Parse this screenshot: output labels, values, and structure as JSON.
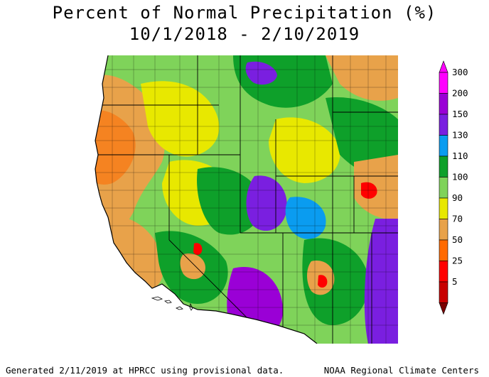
{
  "header": {
    "title": "Percent of Normal Precipitation (%)",
    "period": "10/1/2018 - 2/10/2019"
  },
  "legend": {
    "bins": [
      {
        "label": "300",
        "color": "#ff00ff"
      },
      {
        "label": "200",
        "color": "#9a00d6"
      },
      {
        "label": "150",
        "color": "#7a1fe0"
      },
      {
        "label": "130",
        "color": "#0a9cf0"
      },
      {
        "label": "110",
        "color": "#0ea02a"
      },
      {
        "label": "100",
        "color": "#7fd35a"
      },
      {
        "label": "90",
        "color": "#e8e800"
      },
      {
        "label": "70",
        "color": "#e8a24a"
      },
      {
        "label": "50",
        "color": "#ff6a00"
      },
      {
        "label": "25",
        "color": "#ff0000"
      },
      {
        "label": "5",
        "color": "#c80000"
      }
    ],
    "min_color": "#7a0000"
  },
  "map": {
    "region": "Western United States",
    "palette": {
      "dry_red": "#ff0000",
      "orange": "#ff6a00",
      "tan": "#e8a24a",
      "yellow": "#e8e800",
      "light_green": "#7fd35a",
      "green": "#0ea02a",
      "blue": "#0a9cf0",
      "purple": "#7a1fe0",
      "violet": "#9a00d6",
      "ocean": "#ffffff",
      "borders": "#000000"
    }
  },
  "footer": {
    "left": "Generated 2/11/2019 at HPRCC using provisional data.",
    "right": "NOAA Regional Climate Centers"
  }
}
